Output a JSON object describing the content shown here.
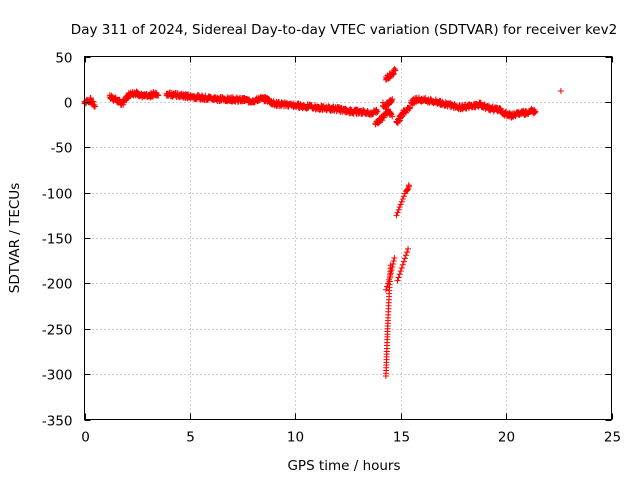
{
  "chart_data": {
    "type": "scatter",
    "title": "Day 311 of 2024, Sidereal Day-to-day VTEC variation (SDTVAR) for receiver kev2",
    "xlabel": "GPS time / hours",
    "ylabel": "SDTVAR / TECUs",
    "xlim": [
      0,
      25
    ],
    "ylim": [
      -350,
      50
    ],
    "xticks": [
      0,
      5,
      10,
      15,
      20,
      25
    ],
    "yticks": [
      -350,
      -300,
      -250,
      -200,
      -150,
      -100,
      -50,
      0,
      50
    ],
    "grid": true,
    "legend": "none",
    "marker": "+",
    "color": "#ff0000",
    "series": [
      {
        "name": "SDTVAR",
        "segments": [
          {
            "x": [
              0.0,
              0.3,
              0.5
            ],
            "y": [
              0,
              2,
              -5
            ]
          },
          {
            "x": [
              1.2,
              1.5,
              1.8,
              2.1,
              2.4,
              2.7,
              3.0,
              3.3,
              3.5
            ],
            "y": [
              6,
              2,
              -2,
              8,
              10,
              7,
              6,
              9,
              7
            ]
          },
          {
            "x": [
              3.9,
              4.5,
              5.0,
              5.5,
              6.0,
              6.5,
              7.0,
              7.5,
              8.0,
              8.4,
              8.7,
              9.0,
              9.5,
              10.0,
              10.5,
              11.0,
              11.5,
              12.0,
              12.5,
              13.0,
              13.5,
              13.9
            ],
            "y": [
              9,
              7,
              6,
              5,
              4,
              3,
              3,
              2,
              1,
              4,
              2,
              -2,
              -3,
              -4,
              -5,
              -6,
              -7,
              -8,
              -10,
              -11,
              -12,
              -11
            ]
          },
          {
            "x": [
              13.8,
              14.0,
              14.2,
              14.4,
              14.6
            ],
            "y": [
              -24,
              -20,
              -16,
              -10,
              -16
            ]
          },
          {
            "x": [
              14.15,
              14.3,
              14.45,
              14.6
            ],
            "y": [
              -2,
              -6,
              0,
              3
            ]
          },
          {
            "x": [
              14.3,
              14.45,
              14.6,
              14.75
            ],
            "y": [
              26,
              28,
              31,
              35
            ]
          },
          {
            "x": [
              14.3,
              14.32,
              14.34,
              14.36,
              14.38,
              14.4,
              14.42,
              14.44,
              14.46,
              14.48,
              14.5,
              14.52
            ],
            "y": [
              -302,
              -290,
              -275,
              -262,
              -250,
              -238,
              -228,
              -218,
              -208,
              -198,
              -190,
              -180
            ]
          },
          {
            "x": [
              14.3,
              14.4,
              14.5,
              14.6,
              14.7
            ],
            "y": [
              -207,
              -200,
              -192,
              -182,
              -172
            ]
          },
          {
            "x": [
              14.85,
              14.95,
              15.05,
              15.15,
              15.25,
              15.35
            ],
            "y": [
              -197,
              -190,
              -183,
              -176,
              -169,
              -162
            ]
          },
          {
            "x": [
              14.8,
              14.9,
              15.0,
              15.1,
              15.2,
              15.3,
              15.4
            ],
            "y": [
              -125,
              -119,
              -113,
              -107,
              -101,
              -96,
              -93
            ]
          },
          {
            "x": [
              14.8,
              14.95,
              15.1,
              15.3,
              15.45
            ],
            "y": [
              -24,
              -18,
              -12,
              -9,
              -6
            ]
          },
          {
            "x": [
              15.5,
              15.8,
              16.1,
              16.4,
              16.7,
              17.0,
              17.3,
              17.6,
              17.9,
              18.2,
              18.5,
              18.8,
              19.1,
              19.4,
              19.7,
              20.0,
              20.3,
              20.6,
              20.9,
              21.2,
              21.4
            ],
            "y": [
              0,
              3,
              2,
              1,
              0,
              -2,
              -3,
              -5,
              -6,
              -5,
              -4,
              -3,
              -6,
              -8,
              -9,
              -14,
              -15,
              -13,
              -12,
              -10,
              -11
            ]
          },
          {
            "x": [
              22.6
            ],
            "y": [
              12
            ]
          }
        ]
      }
    ]
  }
}
